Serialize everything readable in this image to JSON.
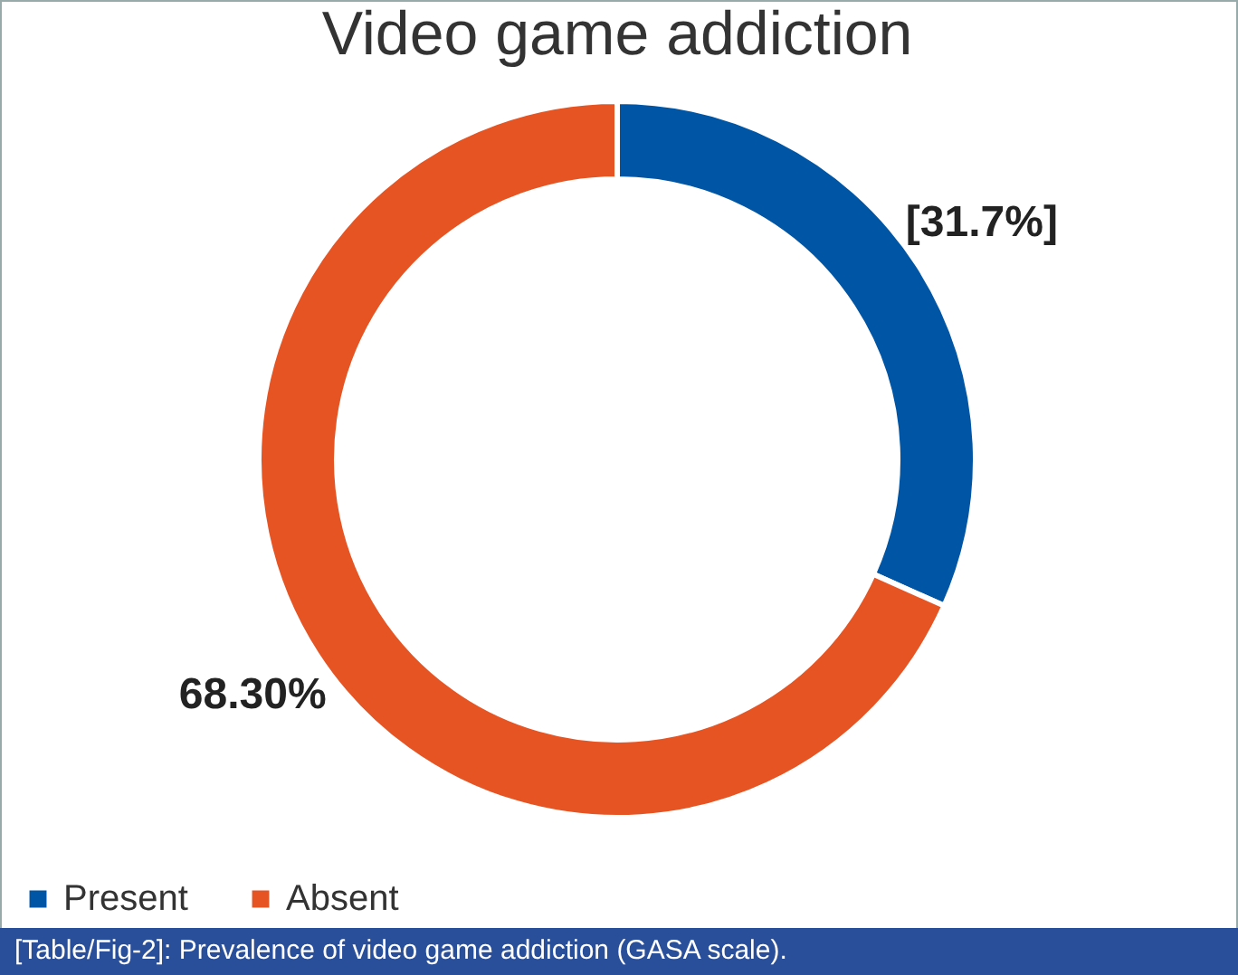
{
  "chart_data": {
    "type": "donut",
    "title": "Video game addiction",
    "categories": [
      "Present",
      "Absent"
    ],
    "values": [
      31.7,
      68.3
    ],
    "colors": [
      "#0055a5",
      "#e75424"
    ],
    "value_labels": [
      "[31.7%]",
      "68.30%"
    ],
    "legend": "bottom",
    "annotations": [
      "[Table/Fig-2]: Prevalence of video game addiction (GASA scale)."
    ]
  }
}
